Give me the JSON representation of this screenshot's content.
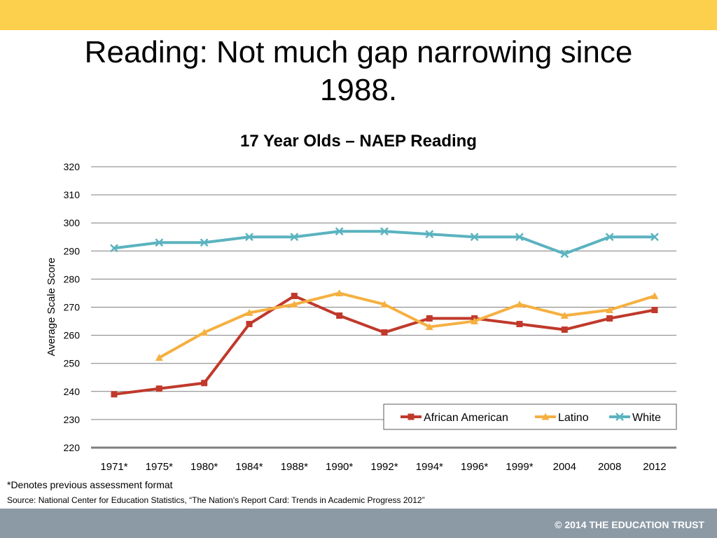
{
  "slide": {
    "title_line1": "Reading:  Not much gap narrowing since",
    "title_line2": "1988.",
    "footnote": "*Denotes previous assessment format",
    "source": "Source: National Center for Education Statistics, “The Nation's Report Card: Trends in Academic Progress 2012”",
    "copyright": "© 2014 THE EDUCATION TRUST",
    "top_bar_color": "#fccf4d",
    "bottom_bar_color": "#8c9aa6"
  },
  "chart_data": {
    "type": "line",
    "title": "17 Year Olds – NAEP Reading",
    "xlabel": "",
    "ylabel": "Average Scale Score",
    "ylim": [
      220,
      320
    ],
    "yticks": [
      220,
      230,
      240,
      250,
      260,
      270,
      280,
      290,
      300,
      310,
      320
    ],
    "grid": true,
    "legend": "bottom-right",
    "categories": [
      "1971*",
      "1975*",
      "1980*",
      "1984*",
      "1988*",
      "1990*",
      "1992*",
      "1994*",
      "1996*",
      "1999*",
      "2004",
      "2008",
      "2012"
    ],
    "series": [
      {
        "name": "African American",
        "color": "#c0392b",
        "marker": "square",
        "values": [
          239,
          241,
          243,
          264,
          274,
          267,
          261,
          266,
          266,
          264,
          262,
          266,
          269
        ]
      },
      {
        "name": "Latino",
        "color": "#f5b041",
        "marker": "triangle",
        "values": [
          null,
          252,
          261,
          268,
          271,
          275,
          271,
          263,
          265,
          271,
          267,
          269,
          274
        ]
      },
      {
        "name": "White",
        "color": "#5bb3bf",
        "marker": "x",
        "values": [
          291,
          293,
          293,
          295,
          295,
          297,
          297,
          296,
          295,
          295,
          289,
          295,
          295
        ]
      }
    ]
  }
}
